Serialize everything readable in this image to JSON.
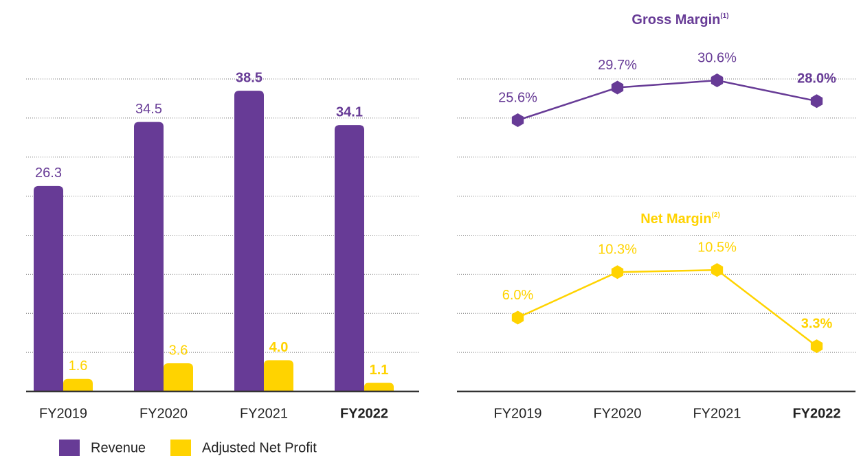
{
  "chart_data": [
    {
      "type": "bar",
      "categories": [
        "FY2019",
        "FY2020",
        "FY2021",
        "FY2022"
      ],
      "bold_categories": [
        false,
        false,
        false,
        true
      ],
      "series": [
        {
          "name": "Revenue",
          "color": "#673b96",
          "values": [
            26.3,
            34.5,
            38.5,
            34.1
          ],
          "value_labels": [
            "26.3",
            "34.5",
            "38.5",
            "34.1"
          ],
          "bold": [
            false,
            false,
            true,
            true
          ]
        },
        {
          "name": "Adjusted Net Profit",
          "color": "#ffd300",
          "values": [
            1.6,
            3.6,
            4.0,
            1.1
          ],
          "value_labels": [
            "1.6",
            "3.6",
            "4.0",
            "1.1"
          ],
          "bold": [
            false,
            false,
            true,
            true
          ]
        }
      ],
      "ylim": [
        0,
        40
      ],
      "yticks": [
        5,
        10,
        15,
        20,
        25,
        30,
        35,
        40
      ],
      "grid": true,
      "legend": "bottom-left"
    },
    {
      "type": "line",
      "title": "Gross Margin",
      "title_note": "(1)",
      "color": "#673b96",
      "categories": [
        "FY2019",
        "FY2020",
        "FY2021",
        "FY2022"
      ],
      "values": [
        25.6,
        29.7,
        30.6,
        28.0
      ],
      "value_labels": [
        "25.6%",
        "29.7%",
        "30.6%",
        "28.0%"
      ],
      "bold": [
        false,
        false,
        false,
        true
      ],
      "ylim": [
        20,
        35
      ]
    },
    {
      "type": "line",
      "title": "Net Margin",
      "title_note": "(2)",
      "color": "#ffd300",
      "categories": [
        "FY2019",
        "FY2020",
        "FY2021",
        "FY2022"
      ],
      "bold_categories": [
        false,
        false,
        false,
        true
      ],
      "values": [
        6.0,
        10.3,
        10.5,
        3.3
      ],
      "value_labels": [
        "6.0%",
        "10.3%",
        "10.5%",
        "3.3%"
      ],
      "bold": [
        false,
        false,
        false,
        true
      ],
      "ylim": [
        0,
        12
      ]
    }
  ]
}
